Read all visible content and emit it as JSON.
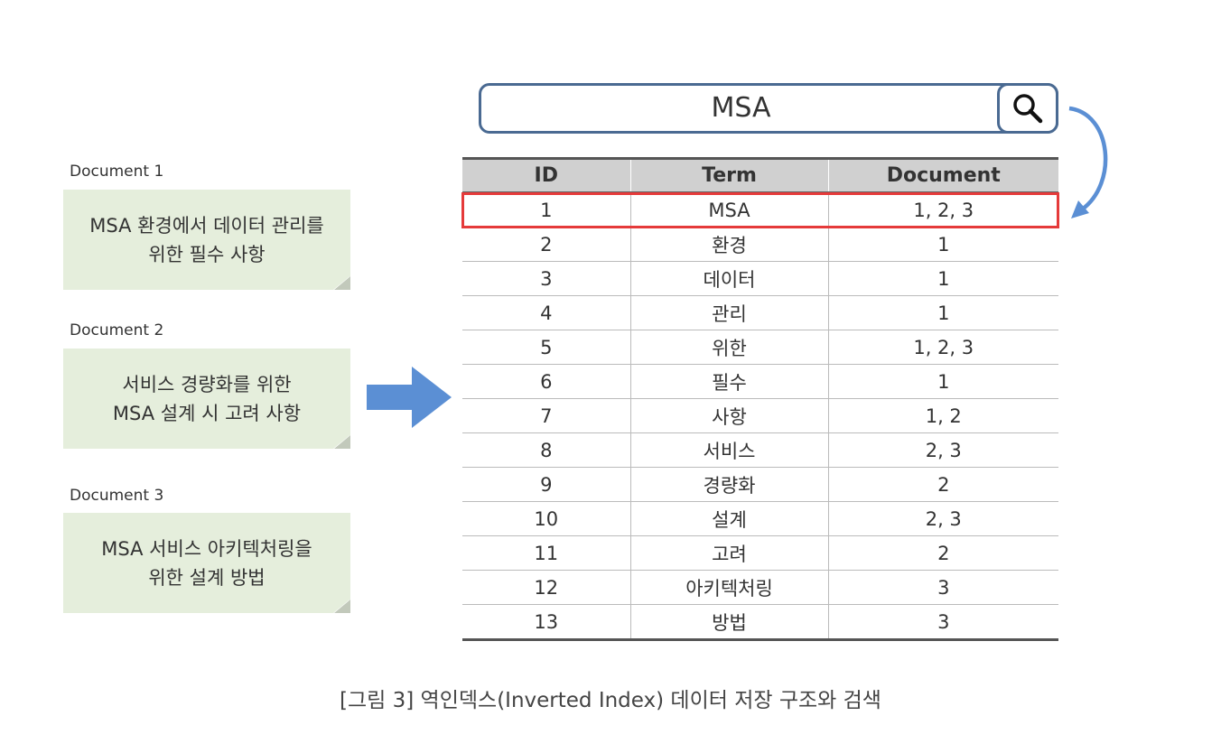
{
  "documents": [
    {
      "label": "Document 1",
      "lines": [
        "MSA 환경에서 데이터 관리를",
        "위한 필수 사항"
      ]
    },
    {
      "label": "Document 2",
      "lines": [
        "서비스 경량화를 위한",
        "MSA 설계 시 고려 사항"
      ]
    },
    {
      "label": "Document 3",
      "lines": [
        "MSA 서비스 아키텍처링을",
        "위한 설계 방법"
      ]
    }
  ],
  "search": {
    "query": "MSA",
    "icon": "search-icon"
  },
  "table": {
    "headers": [
      "ID",
      "Term",
      "Document"
    ],
    "rows": [
      {
        "id": "1",
        "term": "MSA",
        "docs": "1, 2, 3"
      },
      {
        "id": "2",
        "term": "환경",
        "docs": "1"
      },
      {
        "id": "3",
        "term": "데이터",
        "docs": "1"
      },
      {
        "id": "4",
        "term": "관리",
        "docs": "1"
      },
      {
        "id": "5",
        "term": "위한",
        "docs": "1, 2, 3"
      },
      {
        "id": "6",
        "term": "필수",
        "docs": "1"
      },
      {
        "id": "7",
        "term": "사항",
        "docs": "1, 2"
      },
      {
        "id": "8",
        "term": "서비스",
        "docs": "2, 3"
      },
      {
        "id": "9",
        "term": "경량화",
        "docs": "2"
      },
      {
        "id": "10",
        "term": "설계",
        "docs": "2, 3"
      },
      {
        "id": "11",
        "term": "고려",
        "docs": "2"
      },
      {
        "id": "12",
        "term": "아키텍처링",
        "docs": "3"
      },
      {
        "id": "13",
        "term": "방법",
        "docs": "3"
      }
    ]
  },
  "colors": {
    "note_bg": "#e5eedc",
    "highlight": "#e53a3a",
    "arrow": "#5b8fd4",
    "search_border": "#4a6a92"
  },
  "caption": "[그림 3] 역인덱스(Inverted Index) 데이터 저장 구조와 검색"
}
